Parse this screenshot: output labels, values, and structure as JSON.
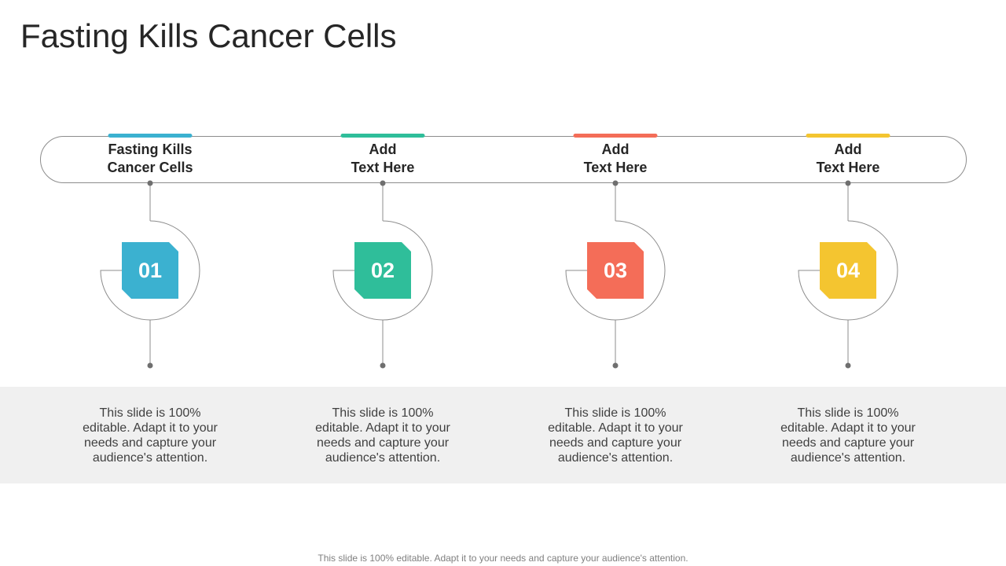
{
  "title": "Fasting Kills Cancer Cells",
  "colors": {
    "step1": "#3bb1d0",
    "step2": "#2fbe9a",
    "step3": "#f46d58",
    "step4": "#f4c530",
    "line": "#8c8c8c",
    "band": "#f0f0f0"
  },
  "steps": [
    {
      "heading": "Fasting Kills\nCancer Cells",
      "number": "01",
      "description": "This slide is 100% editable. Adapt it to your needs and capture your audience's attention."
    },
    {
      "heading": "Add\nText Here",
      "number": "02",
      "description": "This slide is 100% editable. Adapt it to your needs and capture your audience's attention."
    },
    {
      "heading": "Add\nText Here",
      "number": "03",
      "description": "This slide is 100% editable. Adapt it to your needs and capture your audience's attention."
    },
    {
      "heading": "Add\nText Here",
      "number": "04",
      "description": "This slide is 100% editable. Adapt it to your needs and capture your audience's attention."
    }
  ],
  "footer": "This slide is 100% editable. Adapt it to your needs and capture your audience's attention."
}
